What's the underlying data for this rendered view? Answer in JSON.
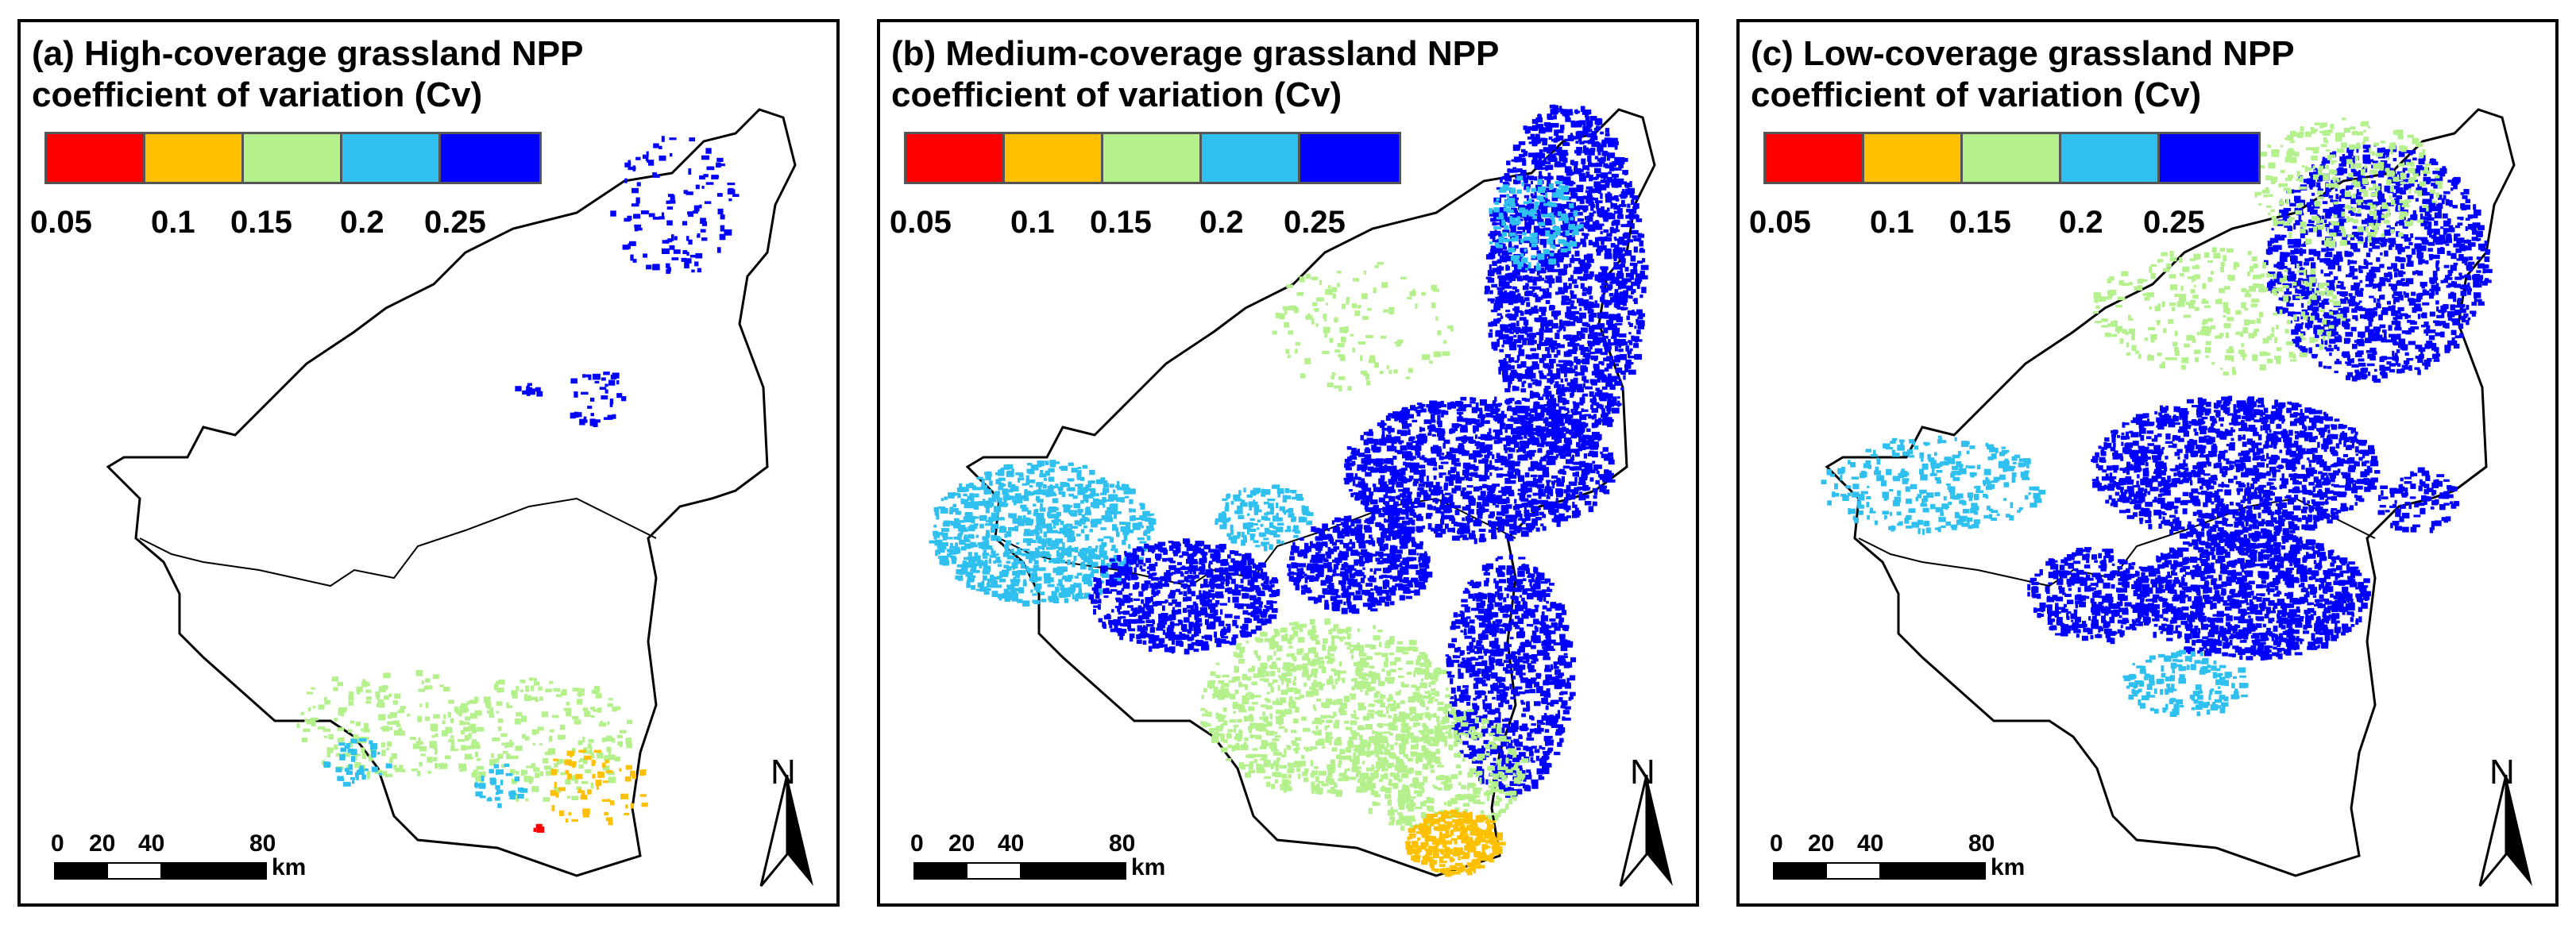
{
  "panels": [
    {
      "id": "a",
      "title_line1": "(a)  High-coverage grassland NPP",
      "title_line2": "coefficient of variation (Cv)"
    },
    {
      "id": "b",
      "title_line1": "(b) Medium-coverage grassland NPP",
      "title_line2": "coefficient of variation (Cv)"
    },
    {
      "id": "c",
      "title_line1": "(c) Low-coverage grassland NPP",
      "title_line2": "coefficient of variation (Cv)"
    }
  ],
  "legend": {
    "colors": [
      "#ff0000",
      "#ffc000",
      "#b4f08c",
      "#30c0f0",
      "#0000ff"
    ],
    "ticks": [
      "0.05",
      "0.1",
      "0.15",
      "0.2",
      "0.25"
    ]
  },
  "scale": {
    "labels": [
      "0",
      "20",
      "40",
      "80"
    ],
    "unit": "km"
  },
  "north_label": "N",
  "pixel_density": {
    "a": {
      "blue": "sparse-north",
      "lightblue": "low",
      "green": "south",
      "yellow": "few",
      "red": "trace"
    },
    "b": {
      "blue": "dense-east",
      "lightblue": "west",
      "green": "south-center",
      "yellow": "south-tip",
      "red": "none"
    },
    "c": {
      "blue": "dense-center",
      "lightblue": "scattered",
      "green": "north",
      "yellow": "none",
      "red": "none"
    }
  }
}
